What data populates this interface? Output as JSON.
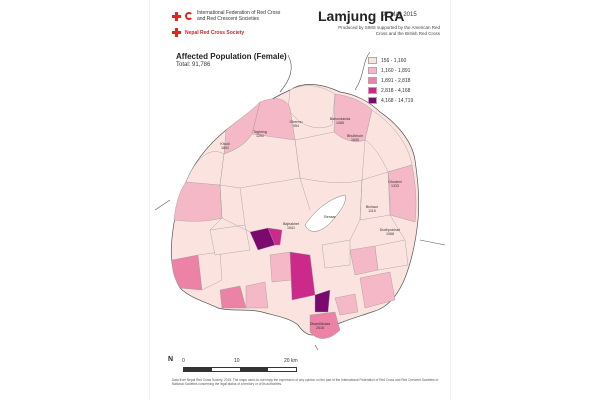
{
  "header": {
    "ifrc_name": "International Federation of Red Cross and Red Crescent Societies",
    "nrcs_name": "Nepal Red Cross Society",
    "title": "Lamjung IRA",
    "date": "07 May 2015",
    "produced_by": "Produced by SIMS supported by the American Red Cross and the British Red Cross"
  },
  "map": {
    "title": "Affected Population (Female)",
    "total": "Total: 91,786",
    "lake_label": "Bensar"
  },
  "legend": [
    {
      "label": "156 - 1,160",
      "color": "#fbe4e0"
    },
    {
      "label": "1,160 - 1,891",
      "color": "#f5b8c6"
    },
    {
      "label": "1,891 - 2,818",
      "color": "#ec82a6"
    },
    {
      "label": "2,818 - 4,168",
      "color": "#cc2a8a"
    },
    {
      "label": "4,168 - 14,719",
      "color": "#7a0a70"
    }
  ],
  "districts": [
    {
      "name": "Ghermu",
      "value": "954"
    },
    {
      "name": "Bahundanda",
      "value": "1085"
    },
    {
      "name": "Taghring",
      "value": "1251"
    },
    {
      "name": "Bhulbhule",
      "value": "1630"
    },
    {
      "name": "Khudi",
      "value": "1891"
    },
    {
      "name": "Bajhakhet",
      "value": "1541"
    },
    {
      "name": "Dhamilikuwa",
      "value": "2516"
    },
    {
      "name": "Dhodeni",
      "value": "1333"
    },
    {
      "name": "Dudhpokhari",
      "value": "1068"
    },
    {
      "name": "Bichaur",
      "value": "1119"
    }
  ],
  "scale": {
    "north": "N",
    "zero": "0",
    "mid": "10",
    "end": "20 km"
  },
  "footer": "Data from Nepal Red Cross Society, 2015. The maps used do not imply the expression of any opinion on the part of the International Federation of Red Cross and Red Crescent Societies or National Societies concerning the legal status of a territory or of its authorities."
}
